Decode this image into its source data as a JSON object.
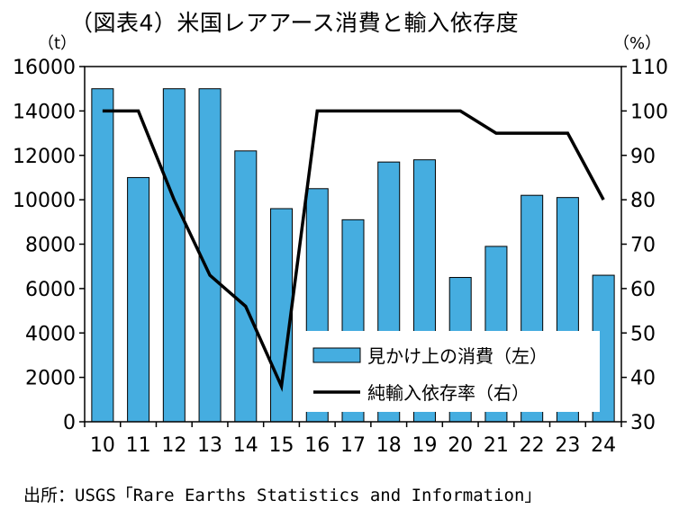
{
  "title": "（図表4）米国レアアース消費と輸入依存度",
  "unit_left": "（t）",
  "unit_right": "（%）",
  "source": "出所：USGS「Rare Earths Statistics and Information」",
  "colors": {
    "bar": "#45ade0",
    "bar_stroke": "#000000",
    "line": "#000000"
  },
  "chart_data": {
    "type": "bar+line",
    "categories": [
      "10",
      "11",
      "12",
      "13",
      "14",
      "15",
      "16",
      "17",
      "18",
      "19",
      "20",
      "21",
      "22",
      "23",
      "24"
    ],
    "y_left": {
      "min": 0,
      "max": 16000,
      "step": 2000
    },
    "y_right": {
      "min": 30,
      "max": 110,
      "step": 10
    },
    "grid": false,
    "legend_position": "bottom-right",
    "series": [
      {
        "name": "見かけ上の消費（左）",
        "type": "bar",
        "axis": "left",
        "values": [
          15000,
          11000,
          15000,
          15000,
          12200,
          9600,
          10500,
          9100,
          11700,
          11800,
          6500,
          7900,
          10200,
          10100,
          6600
        ]
      },
      {
        "name": "純輸入依存率（右）",
        "type": "line",
        "axis": "right",
        "values": [
          100,
          100,
          80,
          63,
          56,
          38,
          100,
          100,
          100,
          100,
          100,
          95,
          95,
          95,
          80
        ]
      }
    ]
  }
}
